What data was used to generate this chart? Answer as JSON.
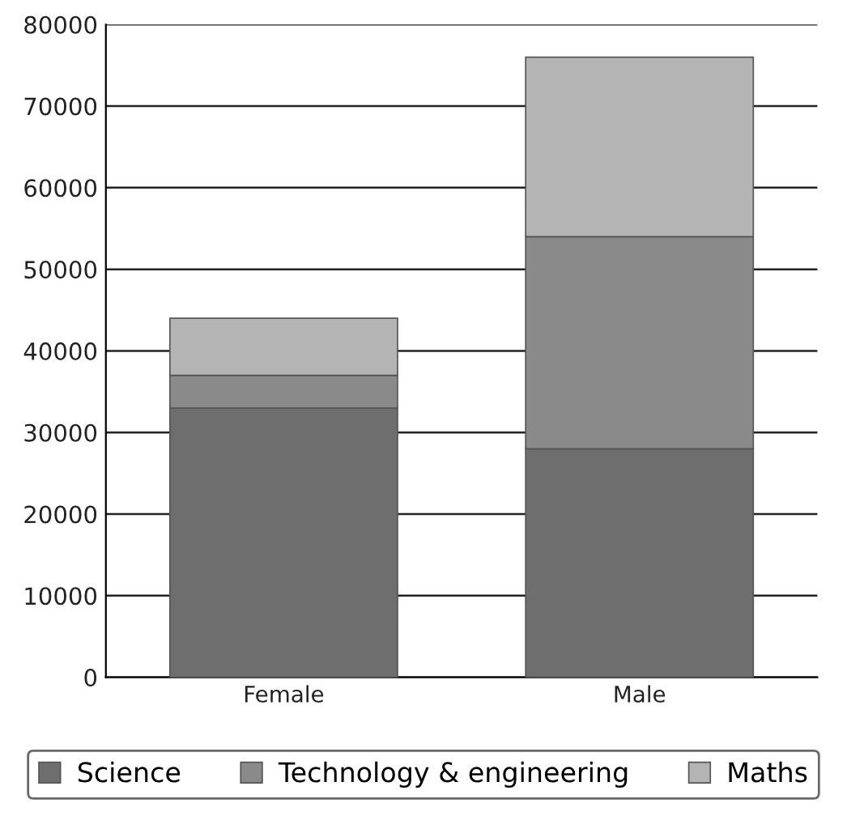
{
  "chart_data": {
    "type": "bar",
    "stacked": true,
    "categories": [
      "Female",
      "Male"
    ],
    "series": [
      {
        "name": "Science",
        "color": "#6e6e6e",
        "values": [
          33000,
          28000
        ]
      },
      {
        "name": "Technology & engineering",
        "color": "#8a8a8a",
        "values": [
          4000,
          26000
        ]
      },
      {
        "name": "Maths",
        "color": "#b4b4b4",
        "values": [
          7000,
          22000
        ]
      }
    ],
    "ylim": [
      0,
      80000
    ],
    "yticks": [
      0,
      10000,
      20000,
      30000,
      40000,
      50000,
      60000,
      70000,
      80000
    ],
    "grid": "y",
    "legend": "bottom"
  }
}
